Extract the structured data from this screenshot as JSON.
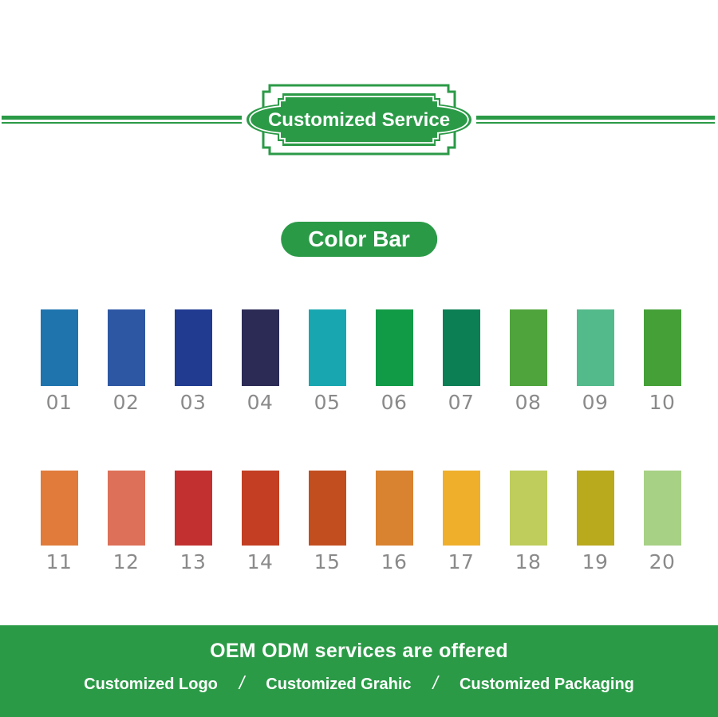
{
  "header": {
    "title": "Customized Service"
  },
  "color_bar": {
    "label": "Color Bar"
  },
  "swatches": {
    "row1": [
      {
        "num": "01",
        "color": "#1F74AE"
      },
      {
        "num": "02",
        "color": "#2E57A3"
      },
      {
        "num": "03",
        "color": "#203B90"
      },
      {
        "num": "04",
        "color": "#2C2B55"
      },
      {
        "num": "05",
        "color": "#18A7B0"
      },
      {
        "num": "06",
        "color": "#119B46"
      },
      {
        "num": "07",
        "color": "#0C7F54"
      },
      {
        "num": "08",
        "color": "#4FA43C"
      },
      {
        "num": "09",
        "color": "#53BA8B"
      },
      {
        "num": "10",
        "color": "#45A038"
      }
    ],
    "row2": [
      {
        "num": "11",
        "color": "#E07B3B"
      },
      {
        "num": "12",
        "color": "#DD7058"
      },
      {
        "num": "13",
        "color": "#C23130"
      },
      {
        "num": "14",
        "color": "#C33E22"
      },
      {
        "num": "15",
        "color": "#C24E1F"
      },
      {
        "num": "16",
        "color": "#D9822F"
      },
      {
        "num": "17",
        "color": "#EFAF2B"
      },
      {
        "num": "18",
        "color": "#BECD5B"
      },
      {
        "num": "19",
        "color": "#B9A91D"
      },
      {
        "num": "20",
        "color": "#A7D185"
      }
    ]
  },
  "footer": {
    "title": "OEM ODM services are offered",
    "separator": "/",
    "items": [
      "Customized Logo",
      "Customized Grahic",
      "Customized Packaging"
    ]
  },
  "colors": {
    "brand_green": "#2B9A47",
    "label_gray": "#8A8A8A",
    "text_white": "#FFFFFF"
  }
}
